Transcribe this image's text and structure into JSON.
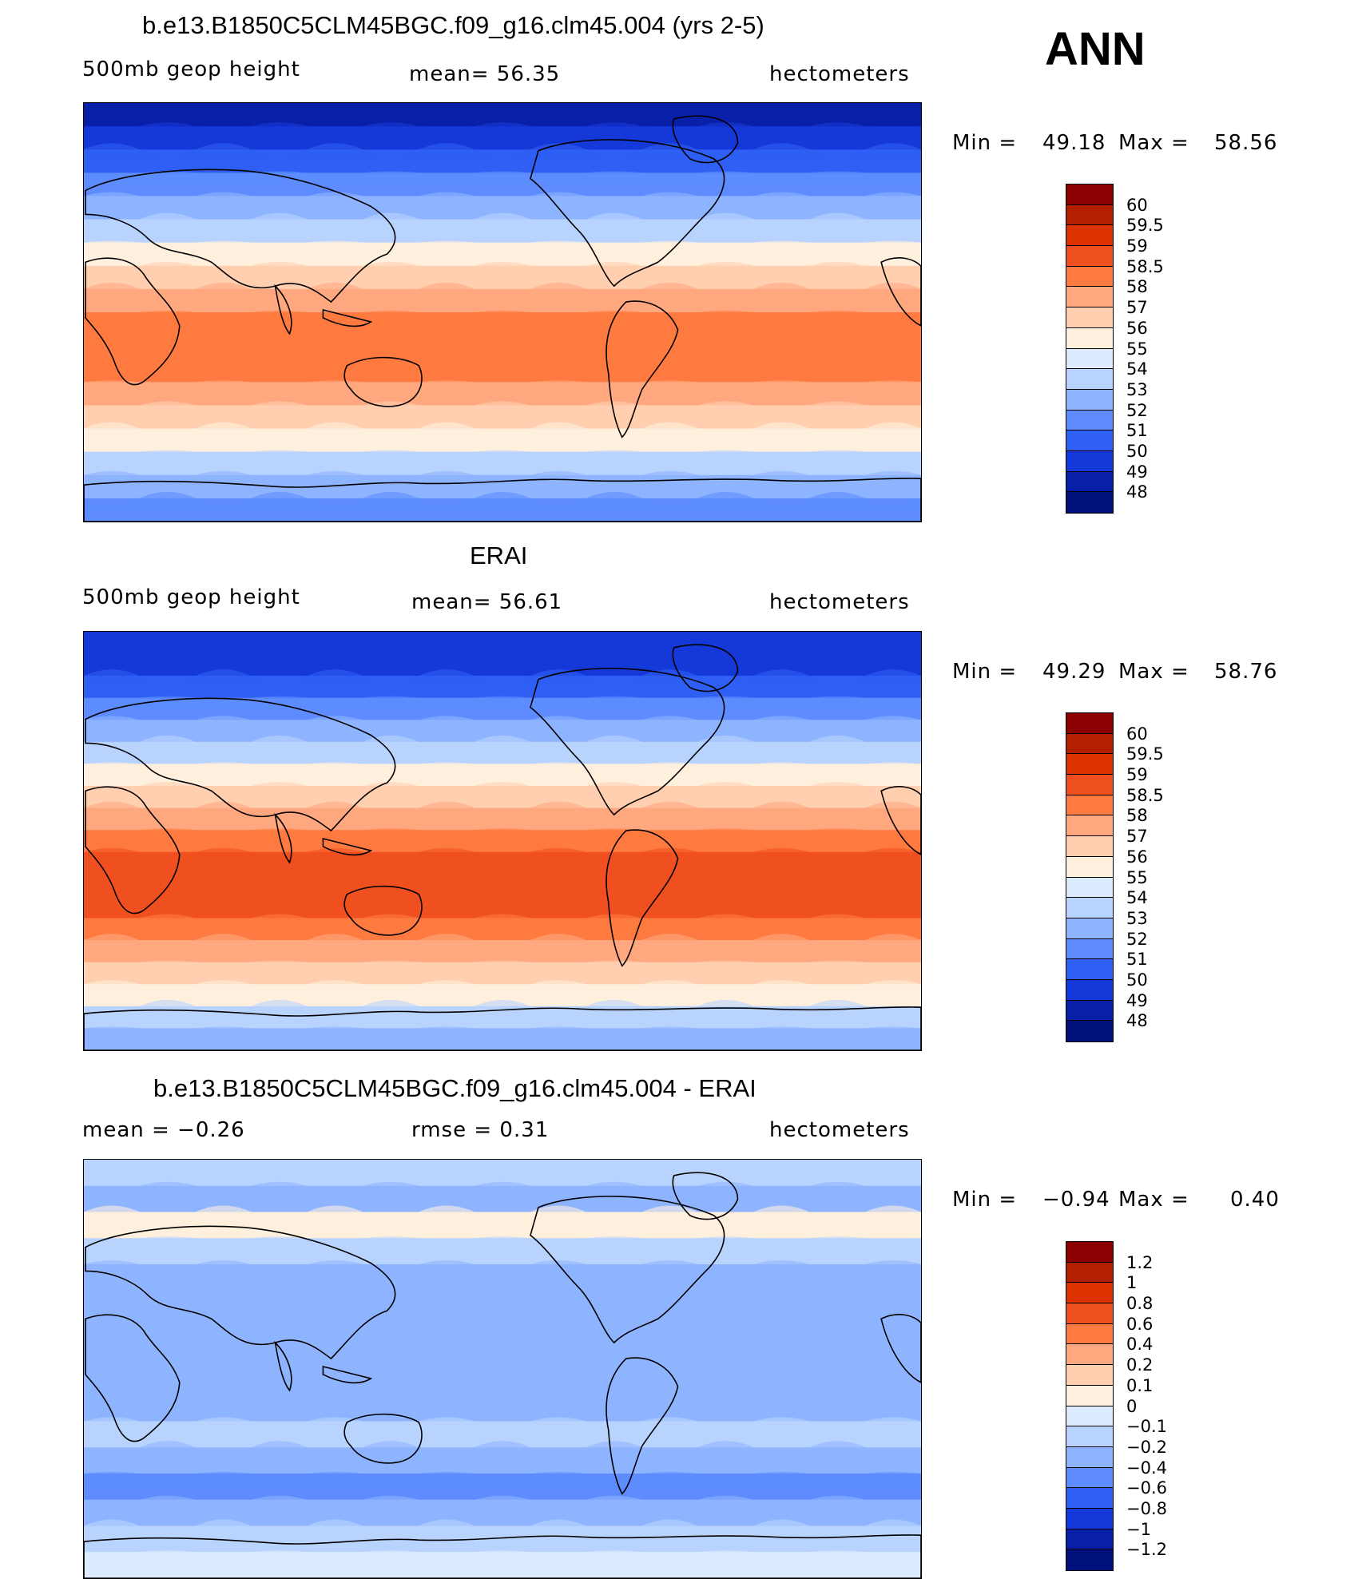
{
  "season": "ANN",
  "panels": [
    {
      "id": "model",
      "title": "b.e13.B1850C5CLM45BGC.f09_g16.clm45.004 (yrs 2-5)",
      "left_label": "500mb  geop  height",
      "center_label": "mean=   56.35",
      "right_label": "hectometers",
      "min_label": "Min  =",
      "min_value": "49.18",
      "max_label": "Max  =",
      "max_value": "58.56",
      "colorbar": {
        "labels": [
          "60",
          "59.5",
          "59",
          "58.5",
          "58",
          "57",
          "56",
          "55",
          "54",
          "53",
          "52",
          "51",
          "50",
          "49",
          "48"
        ],
        "colors": [
          "#8b0000",
          "#b22000",
          "#dd3300",
          "#f05020",
          "#ff7a40",
          "#ffa880",
          "#ffcfb0",
          "#fff0dd",
          "#dcebff",
          "#b9d3ff",
          "#8fb4ff",
          "#5e8cff",
          "#2f5ff5",
          "#1538d8",
          "#0a1fa8",
          "#00107a"
        ]
      },
      "bands": [
        "#0a1fa8",
        "#1538d8",
        "#2f5ff5",
        "#5e8cff",
        "#8fb4ff",
        "#b9d3ff",
        "#fff0dd",
        "#ffcfb0",
        "#ffa880",
        "#ff7a40",
        "#ff7a40",
        "#ff7a40",
        "#ffa880",
        "#ffcfb0",
        "#fff0dd",
        "#b9d3ff",
        "#8fb4ff",
        "#5e8cff"
      ]
    },
    {
      "id": "obs",
      "title": "ERAI",
      "left_label": "500mb  geop  height",
      "center_label": "mean=   56.61",
      "right_label": "hectometers",
      "min_label": "Min  =",
      "min_value": "49.29",
      "max_label": "Max  =",
      "max_value": "58.76",
      "colorbar": {
        "labels": [
          "60",
          "59.5",
          "59",
          "58.5",
          "58",
          "57",
          "56",
          "55",
          "54",
          "53",
          "52",
          "51",
          "50",
          "49",
          "48"
        ],
        "colors": [
          "#8b0000",
          "#b22000",
          "#dd3300",
          "#f05020",
          "#ff7a40",
          "#ffa880",
          "#ffcfb0",
          "#fff0dd",
          "#dcebff",
          "#b9d3ff",
          "#8fb4ff",
          "#5e8cff",
          "#2f5ff5",
          "#1538d8",
          "#0a1fa8",
          "#00107a"
        ]
      },
      "bands": [
        "#1538d8",
        "#1538d8",
        "#2f5ff5",
        "#5e8cff",
        "#8fb4ff",
        "#b9d3ff",
        "#fff0dd",
        "#ffcfb0",
        "#ffa880",
        "#ff7a40",
        "#f05020",
        "#f05020",
        "#f05020",
        "#ff7a40",
        "#ffa880",
        "#ffcfb0",
        "#fff0dd",
        "#b9d3ff",
        "#8fb4ff"
      ]
    },
    {
      "id": "diff",
      "title": "b.e13.B1850C5CLM45BGC.f09_g16.clm45.004 - ERAI",
      "left_label": "mean  =    −0.26",
      "center_label": "rmse  =     0.31",
      "right_label": "hectometers",
      "min_label": "Min  =",
      "min_value": "−0.94",
      "max_label": "Max  =",
      "max_value": "0.40",
      "colorbar": {
        "labels": [
          "1.2",
          "1",
          "0.8",
          "0.6",
          "0.4",
          "0.2",
          "0.1",
          "0",
          "−0.1",
          "−0.2",
          "−0.4",
          "−0.6",
          "−0.8",
          "−1",
          "−1.2"
        ],
        "colors": [
          "#8b0000",
          "#b22000",
          "#dd3300",
          "#f05020",
          "#ff7a40",
          "#ffa880",
          "#ffcfb0",
          "#fff0dd",
          "#dcebff",
          "#b9d3ff",
          "#8fb4ff",
          "#5e8cff",
          "#2f5ff5",
          "#1538d8",
          "#0a1fa8",
          "#00107a"
        ]
      },
      "bands": [
        "#b9d3ff",
        "#8fb4ff",
        "#fff0dd",
        "#b9d3ff",
        "#8fb4ff",
        "#8fb4ff",
        "#8fb4ff",
        "#8fb4ff",
        "#8fb4ff",
        "#8fb4ff",
        "#b9d3ff",
        "#8fb4ff",
        "#5e8cff",
        "#8fb4ff",
        "#b9d3ff",
        "#dcebff"
      ]
    }
  ]
}
